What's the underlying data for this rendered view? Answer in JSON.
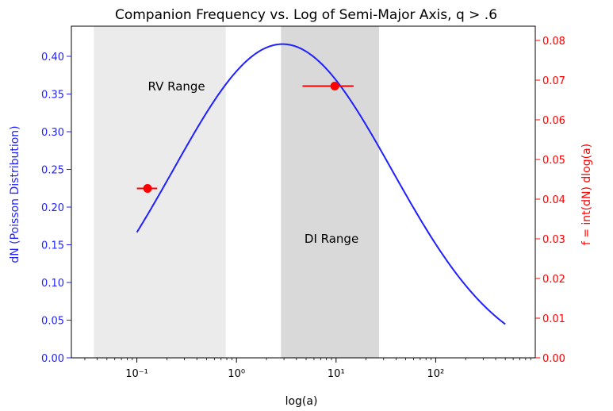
{
  "chart_data": {
    "type": "line",
    "title": "Companion Frequency vs. Log of Semi-Major Axis, q > .6",
    "xlabel": "log(a)",
    "ylabel_left": "dN (Poisson Distribution)",
    "ylabel_right": "f = int(dN) dlog(a)",
    "x_scale": "log",
    "xlim": [
      0.022,
      1000
    ],
    "ylim_left": [
      0,
      0.44
    ],
    "ylim_right": [
      0,
      0.0836
    ],
    "x_ticks": [
      {
        "value": 0.1,
        "label": "10⁻¹"
      },
      {
        "value": 1,
        "label": "10⁰"
      },
      {
        "value": 10,
        "label": "10¹"
      },
      {
        "value": 100,
        "label": "10²"
      }
    ],
    "y_ticks_left": [
      {
        "value": 0.0,
        "label": "0.00"
      },
      {
        "value": 0.05,
        "label": "0.05"
      },
      {
        "value": 0.1,
        "label": "0.10"
      },
      {
        "value": 0.15,
        "label": "0.15"
      },
      {
        "value": 0.2,
        "label": "0.20"
      },
      {
        "value": 0.25,
        "label": "0.25"
      },
      {
        "value": 0.3,
        "label": "0.30"
      },
      {
        "value": 0.35,
        "label": "0.35"
      },
      {
        "value": 0.4,
        "label": "0.40"
      }
    ],
    "y_ticks_right": [
      {
        "value": 0.0,
        "label": "0.00"
      },
      {
        "value": 0.01,
        "label": "0.01"
      },
      {
        "value": 0.02,
        "label": "0.02"
      },
      {
        "value": 0.03,
        "label": "0.03"
      },
      {
        "value": 0.04,
        "label": "0.04"
      },
      {
        "value": 0.05,
        "label": "0.05"
      },
      {
        "value": 0.06,
        "label": "0.06"
      },
      {
        "value": 0.07,
        "label": "0.07"
      },
      {
        "value": 0.08,
        "label": "0.08"
      }
    ],
    "regions": [
      {
        "label": "RV Range",
        "x_start": 0.037,
        "x_end": 0.78,
        "color": "#ebebeb",
        "label_x": 0.25,
        "label_y": 0.36
      },
      {
        "label": "DI Range",
        "x_start": 2.8,
        "x_end": 27,
        "color": "#d9d9d9",
        "label_x": 9.0,
        "label_y": 0.158
      }
    ],
    "curve": {
      "axis": "left",
      "color": "#1f1fff",
      "peak_x": 2.9,
      "peak_y": 0.4162,
      "sigma_log10": 1.1,
      "x_start": 0.1,
      "x_end": 500,
      "offset": 0.0092
    },
    "points": {
      "axis": "right",
      "color": "#ff0000",
      "data": [
        {
          "x": 0.128,
          "y": 0.0427,
          "xerr": [
            0.1,
            0.16
          ]
        },
        {
          "x": 9.7,
          "y": 0.0685,
          "xerr": [
            4.6,
            15.0
          ]
        }
      ]
    },
    "colors": {
      "left_axis": "#1f1fff",
      "right_axis": "#ff0000"
    }
  }
}
